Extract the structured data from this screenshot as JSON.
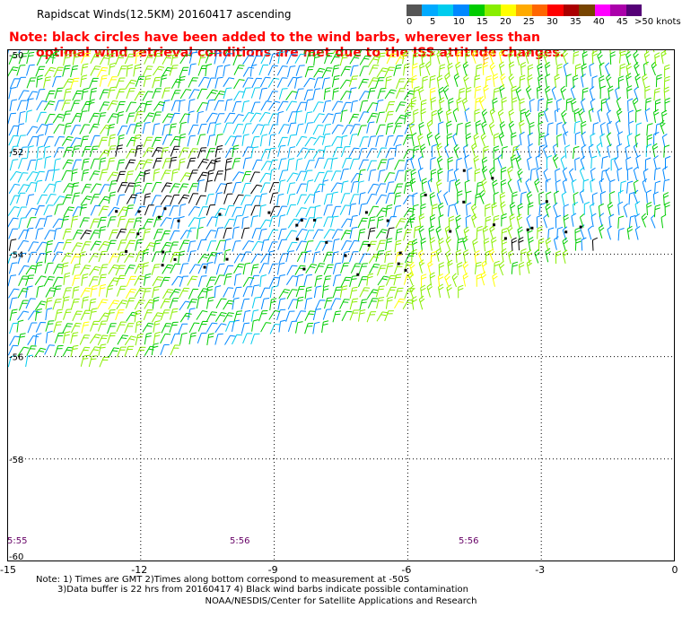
{
  "title": "Rapidscat Winds(12.5KM) 20160417 ascending",
  "red_note": {
    "line1": "Note: black circles have been added to the wind barbs, wherever less than",
    "line2": "optimal wind retrieval conditions are met due to the ISS attitude changes."
  },
  "legend": {
    "colors": [
      "#555555",
      "#00aaff",
      "#00ccee",
      "#0088ff",
      "#00cc00",
      "#88ee00",
      "#ffff00",
      "#ffaa00",
      "#ff6600",
      "#ff0000",
      "#aa0000",
      "#774400",
      "#ff00ff",
      "#aa00aa",
      "#550077"
    ],
    "ticks": [
      "0",
      "5",
      "10",
      "15",
      "20",
      "25",
      "30",
      "35",
      "40",
      "45",
      ">50 knots"
    ],
    "units": "knots"
  },
  "map": {
    "lat_labels": [
      "-50",
      "-52",
      "-54",
      "-56",
      "-58",
      "-60"
    ],
    "lon_labels": [
      "-15",
      "-12",
      "-9",
      "-6",
      "-3",
      "0"
    ],
    "time_labels": [
      "5:55",
      "5:56",
      "5:56"
    ],
    "lat_range": [
      -60,
      -50
    ],
    "lon_range": [
      -15,
      0
    ],
    "grid": "dotted",
    "wind_speed_range_knots": [
      0,
      50
    ]
  },
  "footnote": {
    "line1": "Note: 1) Times are GMT 2)Times along bottom correspond to measurement at -50S",
    "line2": "3)Data buffer is 22 hrs from 20160417 4) Black wind barbs indicate possible contamination"
  },
  "credit": "NOAA/NESDIS/Center for Satellite Applications and Research"
}
